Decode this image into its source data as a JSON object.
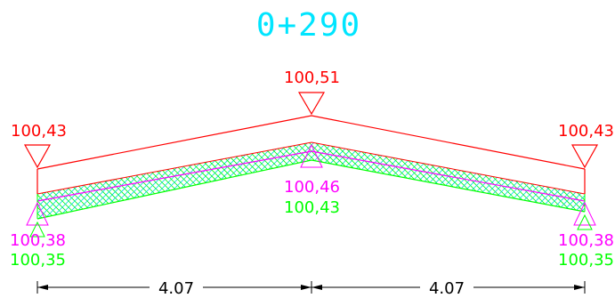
{
  "section": {
    "station": "0+290"
  },
  "colors": {
    "title": "#00e5ff",
    "red": "#ff0000",
    "magenta": "#ff00ff",
    "green": "#00ff00",
    "cyan": "#00d8d8",
    "black": "#000000"
  },
  "elevations": {
    "left_top": "100,43",
    "center_top": "100,51",
    "right_top": "100,43",
    "center_magenta": "100,46",
    "center_green": "100,43",
    "left_magenta": "100,38",
    "left_green": "100,35",
    "right_magenta": "100,38",
    "right_green": "100,35"
  },
  "dimensions": {
    "left_width": "4.07",
    "right_width": "4.07"
  }
}
